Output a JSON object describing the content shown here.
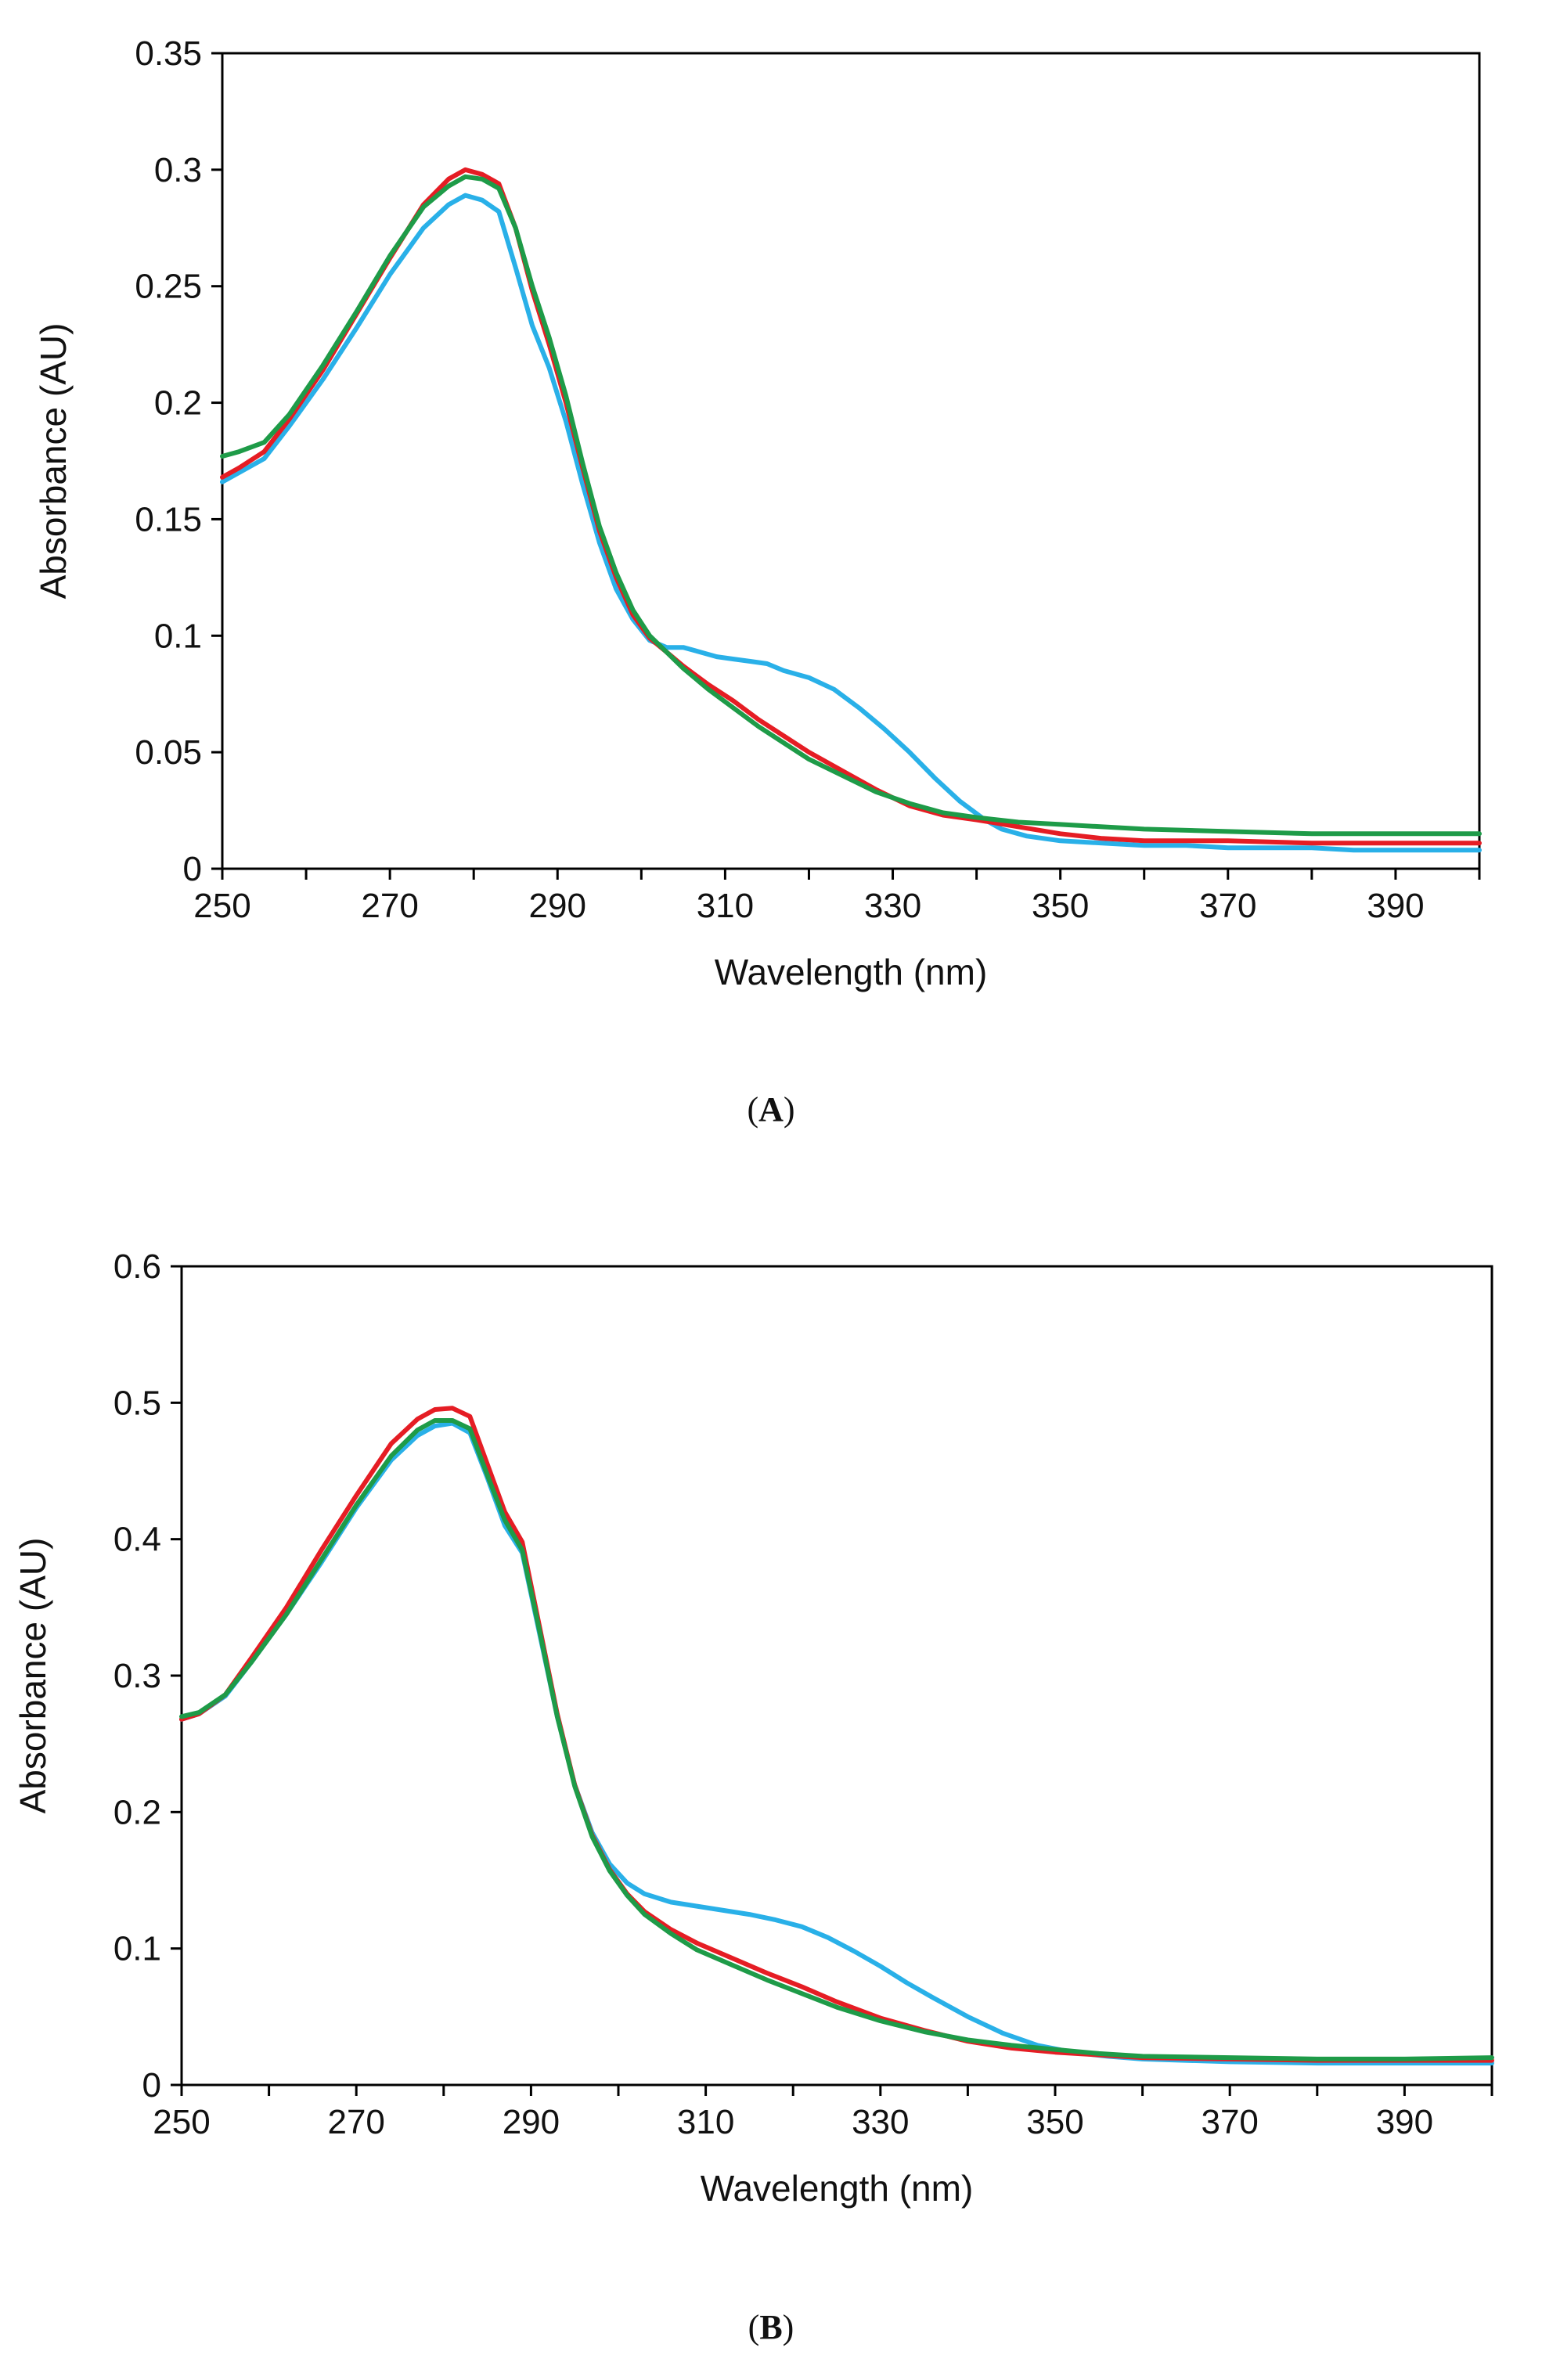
{
  "chart_data": [
    {
      "type": "line",
      "panel_label": "A",
      "xlabel": "Wavelength (nm)",
      "ylabel": "Absorbance (AU)",
      "xlim": [
        250,
        400
      ],
      "ylim": [
        0,
        0.35
      ],
      "x_ticks": [
        250,
        270,
        290,
        310,
        330,
        350,
        370,
        390
      ],
      "y_ticks": [
        0,
        0.05,
        0.1,
        0.15,
        0.2,
        0.25,
        0.3,
        0.35
      ],
      "y_tick_labels": [
        "0",
        "0.05",
        "0.1",
        "0.15",
        "0.2",
        "0.25",
        "0.3",
        "0.35"
      ],
      "grid": false,
      "series": [
        {
          "name": "blue",
          "color": "#29b0e8",
          "x": [
            250,
            252,
            255,
            258,
            262,
            266,
            270,
            274,
            277,
            279,
            281,
            283,
            285,
            287,
            289,
            291,
            293,
            295,
            297,
            299,
            301,
            303,
            305,
            307,
            309,
            311,
            313,
            315,
            317,
            320,
            323,
            326,
            329,
            332,
            335,
            338,
            341,
            343,
            346,
            350,
            355,
            360,
            365,
            370,
            375,
            380,
            385,
            390,
            395,
            400
          ],
          "y": [
            0.166,
            0.17,
            0.176,
            0.19,
            0.21,
            0.232,
            0.255,
            0.275,
            0.285,
            0.289,
            0.287,
            0.282,
            0.258,
            0.233,
            0.215,
            0.192,
            0.165,
            0.14,
            0.12,
            0.107,
            0.098,
            0.095,
            0.095,
            0.093,
            0.091,
            0.09,
            0.089,
            0.088,
            0.085,
            0.082,
            0.077,
            0.069,
            0.06,
            0.05,
            0.039,
            0.029,
            0.021,
            0.017,
            0.014,
            0.012,
            0.011,
            0.01,
            0.01,
            0.009,
            0.009,
            0.009,
            0.008,
            0.008,
            0.008,
            0.008
          ]
        },
        {
          "name": "red",
          "color": "#e51d24",
          "x": [
            250,
            252,
            255,
            258,
            262,
            266,
            270,
            274,
            277,
            279,
            281,
            283,
            285,
            287,
            289,
            291,
            293,
            295,
            297,
            299,
            301,
            303,
            305,
            308,
            311,
            314,
            317,
            320,
            324,
            328,
            332,
            336,
            340,
            345,
            350,
            355,
            360,
            370,
            380,
            390,
            400
          ],
          "y": [
            0.168,
            0.172,
            0.179,
            0.193,
            0.214,
            0.238,
            0.262,
            0.285,
            0.296,
            0.3,
            0.298,
            0.294,
            0.275,
            0.248,
            0.225,
            0.2,
            0.172,
            0.145,
            0.125,
            0.109,
            0.099,
            0.093,
            0.087,
            0.079,
            0.072,
            0.064,
            0.057,
            0.05,
            0.042,
            0.034,
            0.027,
            0.023,
            0.021,
            0.018,
            0.015,
            0.013,
            0.012,
            0.012,
            0.011,
            0.011,
            0.011
          ]
        },
        {
          "name": "green",
          "color": "#1e9b48",
          "x": [
            250,
            252,
            255,
            258,
            262,
            266,
            270,
            274,
            277,
            279,
            281,
            283,
            285,
            287,
            289,
            291,
            293,
            295,
            297,
            299,
            301,
            303,
            305,
            308,
            311,
            314,
            317,
            320,
            324,
            328,
            332,
            336,
            340,
            345,
            350,
            355,
            360,
            370,
            380,
            390,
            400
          ],
          "y": [
            0.177,
            0.179,
            0.183,
            0.195,
            0.216,
            0.239,
            0.263,
            0.284,
            0.293,
            0.297,
            0.296,
            0.292,
            0.275,
            0.25,
            0.228,
            0.203,
            0.174,
            0.147,
            0.127,
            0.111,
            0.1,
            0.093,
            0.086,
            0.077,
            0.069,
            0.061,
            0.054,
            0.047,
            0.04,
            0.033,
            0.028,
            0.024,
            0.022,
            0.02,
            0.019,
            0.018,
            0.017,
            0.016,
            0.015,
            0.015,
            0.015
          ]
        }
      ]
    },
    {
      "type": "line",
      "panel_label": "B",
      "xlabel": "Wavelength (nm)",
      "ylabel": "Absorbance (AU)",
      "xlim": [
        250,
        400
      ],
      "ylim": [
        0,
        0.6
      ],
      "x_ticks": [
        250,
        270,
        290,
        310,
        330,
        350,
        370,
        390
      ],
      "y_ticks": [
        0,
        0.1,
        0.2,
        0.3,
        0.4,
        0.5,
        0.6
      ],
      "y_tick_labels": [
        "0",
        "0.1",
        "0.2",
        "0.3",
        "0.4",
        "0.5",
        "0.6"
      ],
      "grid": false,
      "series": [
        {
          "name": "blue",
          "color": "#29b0e8",
          "x": [
            250,
            252,
            255,
            258,
            262,
            266,
            270,
            274,
            277,
            279,
            281,
            283,
            285,
            287,
            289,
            291,
            293,
            295,
            297,
            299,
            301,
            303,
            306,
            309,
            312,
            315,
            318,
            321,
            324,
            327,
            330,
            333,
            336,
            340,
            344,
            348,
            352,
            356,
            360,
            370,
            380,
            390,
            400
          ],
          "y": [
            0.268,
            0.272,
            0.285,
            0.31,
            0.345,
            0.383,
            0.423,
            0.458,
            0.476,
            0.483,
            0.485,
            0.478,
            0.445,
            0.41,
            0.39,
            0.33,
            0.27,
            0.22,
            0.185,
            0.162,
            0.148,
            0.14,
            0.134,
            0.131,
            0.128,
            0.125,
            0.121,
            0.116,
            0.108,
            0.098,
            0.087,
            0.075,
            0.064,
            0.05,
            0.038,
            0.029,
            0.024,
            0.021,
            0.019,
            0.017,
            0.016,
            0.016,
            0.016
          ]
        },
        {
          "name": "red",
          "color": "#e51d24",
          "x": [
            250,
            252,
            255,
            258,
            262,
            266,
            270,
            274,
            277,
            279,
            281,
            283,
            285,
            287,
            289,
            291,
            293,
            295,
            297,
            299,
            301,
            303,
            306,
            309,
            313,
            317,
            321,
            325,
            330,
            335,
            340,
            345,
            350,
            355,
            360,
            370,
            380,
            390,
            400
          ],
          "y": [
            0.268,
            0.272,
            0.286,
            0.313,
            0.35,
            0.392,
            0.432,
            0.47,
            0.488,
            0.495,
            0.496,
            0.49,
            0.455,
            0.42,
            0.398,
            0.335,
            0.272,
            0.22,
            0.183,
            0.158,
            0.14,
            0.127,
            0.114,
            0.104,
            0.093,
            0.082,
            0.072,
            0.061,
            0.049,
            0.04,
            0.032,
            0.027,
            0.024,
            0.022,
            0.02,
            0.019,
            0.018,
            0.018,
            0.018
          ]
        },
        {
          "name": "green",
          "color": "#1e9b48",
          "x": [
            250,
            252,
            255,
            258,
            262,
            266,
            270,
            274,
            277,
            279,
            281,
            283,
            285,
            287,
            289,
            291,
            293,
            295,
            297,
            299,
            301,
            303,
            306,
            309,
            313,
            317,
            321,
            325,
            330,
            335,
            340,
            345,
            350,
            355,
            360,
            370,
            380,
            390,
            400
          ],
          "y": [
            0.27,
            0.273,
            0.286,
            0.31,
            0.345,
            0.385,
            0.425,
            0.461,
            0.48,
            0.487,
            0.487,
            0.481,
            0.447,
            0.414,
            0.392,
            0.332,
            0.27,
            0.219,
            0.182,
            0.157,
            0.139,
            0.125,
            0.111,
            0.099,
            0.088,
            0.077,
            0.067,
            0.057,
            0.047,
            0.039,
            0.033,
            0.029,
            0.026,
            0.023,
            0.021,
            0.02,
            0.019,
            0.019,
            0.02
          ]
        }
      ]
    }
  ]
}
